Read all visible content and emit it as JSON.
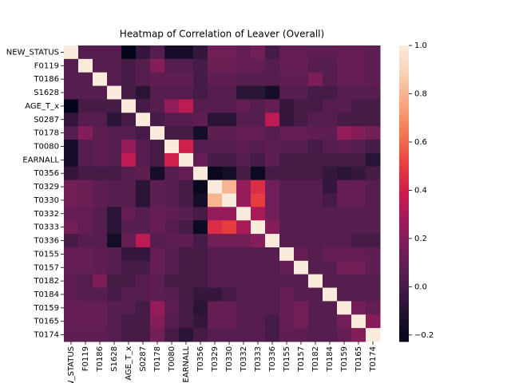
{
  "chart_data": {
    "type": "heatmap",
    "title": "Heatmap of Correlation of Leaver (Overall)",
    "categories": [
      "NEW_STATUS",
      "F0119",
      "T0186",
      "S1628",
      "AGE_T_x",
      "S0287",
      "T0178",
      "T0080",
      "EARNALL",
      "T0356",
      "T0329",
      "T0330",
      "T0332",
      "T0333",
      "T0336",
      "T0155",
      "T0157",
      "T0182",
      "T0184",
      "T0159",
      "T0165",
      "T0174"
    ],
    "values": [
      [
        1,
        0.05,
        0.05,
        0.05,
        -0.22,
        -0.05,
        0.05,
        -0.15,
        -0.15,
        -0.05,
        0.15,
        0.15,
        0.1,
        0.15,
        0,
        0.1,
        0.1,
        0.08,
        0.08,
        0.1,
        0.1,
        0.08
      ],
      [
        0.05,
        1,
        0.05,
        0.05,
        0,
        0.05,
        0.2,
        0.05,
        0.05,
        0,
        0.12,
        0.12,
        0.1,
        0.1,
        0.05,
        0.1,
        0.1,
        0.05,
        0.05,
        0.1,
        0.1,
        0.08
      ],
      [
        0.05,
        0.05,
        1,
        0.05,
        0,
        0.05,
        0.08,
        0.08,
        0.08,
        0,
        0.08,
        0.08,
        0.05,
        0.05,
        0.05,
        0.08,
        0.08,
        0.18,
        0.05,
        0.1,
        0.1,
        0.08
      ],
      [
        0.05,
        0.05,
        0.05,
        1,
        0,
        -0.08,
        0.05,
        0.05,
        0.05,
        0,
        0.05,
        0.05,
        -0.08,
        -0.08,
        -0.15,
        0.05,
        0.05,
        0,
        0,
        0.05,
        0.05,
        0.05
      ],
      [
        -0.22,
        0,
        0,
        0,
        1,
        0,
        0.05,
        0.25,
        0.35,
        0.05,
        0.05,
        0.05,
        0.1,
        0.05,
        0.1,
        -0.05,
        0,
        0,
        0.05,
        0.05,
        0,
        0
      ],
      [
        -0.05,
        0.05,
        0.05,
        -0.08,
        0,
        1,
        0,
        0.05,
        0.05,
        0.08,
        -0.08,
        -0.08,
        0.05,
        0.05,
        0.35,
        -0.05,
        0,
        0.05,
        0.05,
        0,
        0,
        0
      ],
      [
        0.05,
        0.2,
        0.08,
        0.05,
        0.05,
        0,
        1,
        0,
        0,
        -0.15,
        0.08,
        0.08,
        0.1,
        0.1,
        0.05,
        0.1,
        0.1,
        0.08,
        0.08,
        0.25,
        0.2,
        0.15
      ],
      [
        -0.15,
        0.05,
        0.08,
        0.05,
        0.25,
        0.05,
        0,
        1,
        0.4,
        0.05,
        0.05,
        0.05,
        0.08,
        0.05,
        0.08,
        0.05,
        0.05,
        0,
        0.05,
        0.08,
        0.05,
        0
      ],
      [
        -0.15,
        0.05,
        0.08,
        0.05,
        0.35,
        0.05,
        0,
        0.4,
        1,
        0.1,
        0,
        0,
        0.05,
        0,
        0.08,
        0,
        0,
        0,
        0,
        0,
        0,
        -0.08
      ],
      [
        -0.05,
        0,
        0,
        0,
        0.05,
        0.08,
        -0.15,
        0.05,
        0.1,
        1,
        -0.2,
        -0.15,
        0,
        -0.18,
        0,
        0,
        0,
        0,
        -0.05,
        -0.08,
        -0.05,
        0
      ],
      [
        0.15,
        0.12,
        0.08,
        0.05,
        0.05,
        -0.08,
        0.08,
        0.05,
        0,
        -0.2,
        1,
        0.8,
        0.25,
        0.45,
        0.15,
        0.05,
        0.05,
        0.05,
        -0.05,
        0.1,
        0.1,
        0.05
      ],
      [
        0.15,
        0.12,
        0.08,
        0.05,
        0.05,
        -0.08,
        0.08,
        0.05,
        0,
        -0.15,
        0.8,
        1,
        0.25,
        0.5,
        0.15,
        0.05,
        0.05,
        0.05,
        0,
        0.1,
        0.1,
        0.05
      ],
      [
        0.1,
        0.1,
        0.05,
        -0.08,
        0.1,
        0.05,
        0.1,
        0.08,
        0.05,
        0,
        0.25,
        0.25,
        1,
        0.3,
        0.15,
        0.05,
        0.05,
        0.05,
        0.05,
        0.05,
        0.05,
        0.05
      ],
      [
        0.15,
        0.1,
        0.05,
        -0.08,
        0.05,
        0.05,
        0.1,
        0.05,
        0,
        -0.18,
        0.45,
        0.5,
        0.3,
        1,
        0.2,
        0.05,
        0.05,
        0.05,
        0.05,
        0.05,
        0.05,
        0.05
      ],
      [
        0,
        0.05,
        0.05,
        -0.15,
        0.1,
        0.35,
        0.05,
        0.08,
        0.08,
        0,
        0.15,
        0.15,
        0.15,
        0.2,
        1,
        0.05,
        0.05,
        0.05,
        0.05,
        0.05,
        0,
        0
      ],
      [
        0.1,
        0.1,
        0.08,
        0.05,
        -0.05,
        -0.05,
        0.1,
        0.05,
        0,
        0,
        0.05,
        0.05,
        0.05,
        0.05,
        0.05,
        1,
        0.1,
        0.05,
        0.1,
        0.1,
        0.1,
        0.08
      ],
      [
        0.1,
        0.1,
        0.08,
        0.05,
        0,
        0,
        0.1,
        0.05,
        0,
        0,
        0.05,
        0.05,
        0.05,
        0.05,
        0.05,
        0.1,
        1,
        0.05,
        0.05,
        0.15,
        0.15,
        0.08
      ],
      [
        0.08,
        0.05,
        0.18,
        0,
        0,
        0.05,
        0.08,
        0,
        0,
        0,
        0.05,
        0.05,
        0.05,
        0.05,
        0.05,
        0.05,
        0.05,
        1,
        0.05,
        0.05,
        0.05,
        0.05
      ],
      [
        0.08,
        0.05,
        0.05,
        0,
        0.05,
        0.05,
        0.08,
        0.05,
        0,
        -0.05,
        -0.05,
        0,
        0.05,
        0.05,
        0.05,
        0.1,
        0.05,
        0.05,
        1,
        0.05,
        0.05,
        0.05
      ],
      [
        0.1,
        0.1,
        0.1,
        0.05,
        0.05,
        0,
        0.25,
        0.08,
        0,
        -0.08,
        0.1,
        0.1,
        0.05,
        0.05,
        0.05,
        0.1,
        0.15,
        0.05,
        0.05,
        1,
        0.15,
        0.1
      ],
      [
        0.1,
        0.1,
        0.1,
        0.05,
        0,
        0,
        0.2,
        0.05,
        0,
        -0.05,
        0.1,
        0.1,
        0.05,
        0.05,
        0,
        0.1,
        0.15,
        0.05,
        0.05,
        0.15,
        1,
        0.2
      ],
      [
        0.08,
        0.08,
        0.08,
        0.05,
        0,
        0,
        0.15,
        0,
        -0.08,
        0,
        0.05,
        0.05,
        0.05,
        0.05,
        0,
        0.08,
        0.08,
        0.05,
        0.05,
        0.1,
        0.2,
        1
      ]
    ],
    "zlim": [
      -0.227,
      1.0
    ],
    "zticks": [
      {
        "value": -0.2,
        "label": "−0.2"
      },
      {
        "value": 0,
        "label": "0.0"
      },
      0.2,
      0.4,
      0.6,
      0.8,
      {
        "value": 1,
        "label": "1.0"
      }
    ],
    "colormap": [
      "#03051a",
      "#221331",
      "#4c1d4b",
      "#701f57",
      "#9b1b5b",
      "#cb1b4f",
      "#e83f3f",
      "#f37651",
      "#f6a47c",
      "#f7cfb1",
      "#faebdd"
    ]
  }
}
